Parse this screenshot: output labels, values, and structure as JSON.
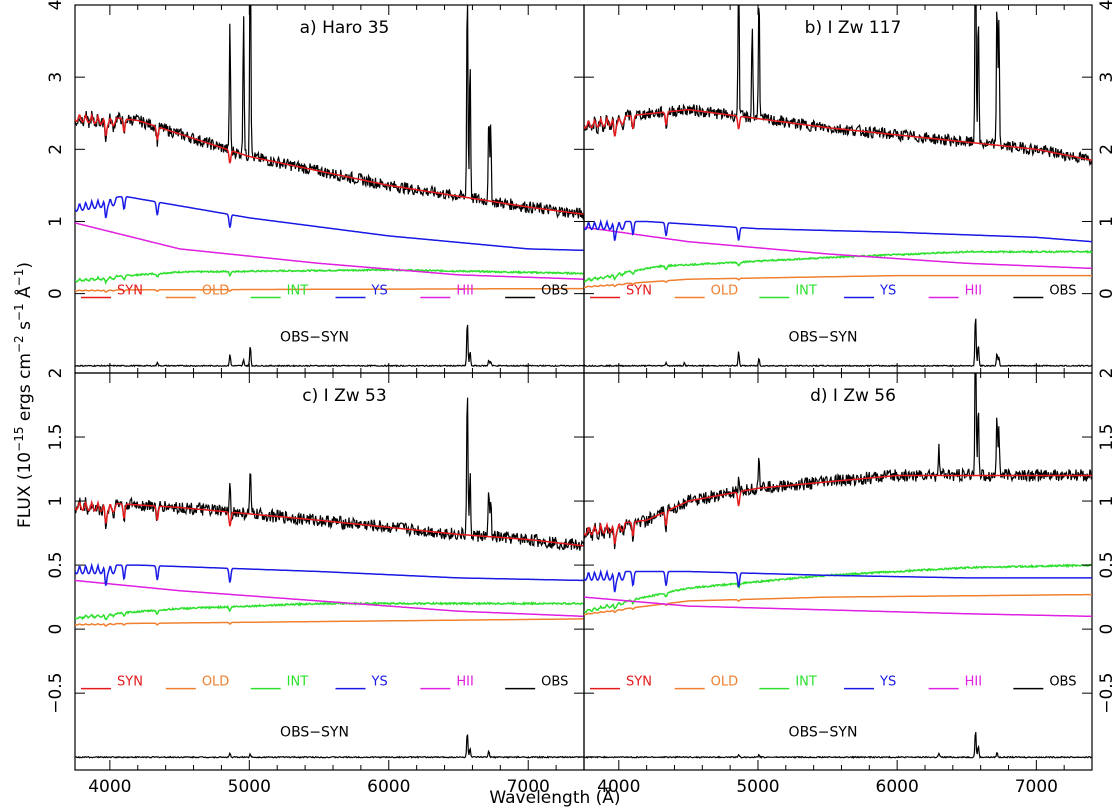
{
  "figure": {
    "ylabel": "FLUX (10^-15 ergs cm^-2 s^-1 Å^-1)",
    "ylabel_parts": [
      "FLUX (10",
      "−15",
      " ergs cm",
      "−2",
      " s",
      "−1",
      " Å",
      "−1",
      ")"
    ],
    "xlabel": "Wavelength (Å)",
    "legend": [
      {
        "label": "SYN",
        "color": "#e41a1c"
      },
      {
        "label": "OLD",
        "color": "#f08030"
      },
      {
        "label": "INT",
        "color": "#2ee02e"
      },
      {
        "label": "YS",
        "color": "#1a1ae6"
      },
      {
        "label": "HII",
        "color": "#e020e0"
      },
      {
        "label": "OBS",
        "color": "#000000"
      }
    ],
    "residual_label": "OBS−SYN"
  },
  "chart_data": [
    {
      "type": "line",
      "panel": "a",
      "title": "a) Haro 35",
      "xlim": [
        3750,
        7400
      ],
      "ylim": [
        -1.1,
        4
      ],
      "yticks": [
        0,
        1,
        2,
        3,
        4
      ],
      "ytick_labels": [
        "0",
        "1",
        "2",
        "3",
        "4"
      ],
      "ytick_side": "left",
      "xticks": [
        4000,
        5000,
        6000,
        7000
      ],
      "xtick_labels": [],
      "continuum": {
        "SYN": [
          [
            3750,
            2.5
          ],
          [
            4200,
            2.4
          ],
          [
            5000,
            1.9
          ],
          [
            6000,
            1.5
          ],
          [
            7000,
            1.2
          ],
          [
            7400,
            1.1
          ]
        ],
        "YS": [
          [
            3750,
            1.25
          ],
          [
            4100,
            1.35
          ],
          [
            5000,
            1.05
          ],
          [
            6000,
            0.8
          ],
          [
            7000,
            0.62
          ],
          [
            7400,
            0.6
          ]
        ],
        "INT": [
          [
            3750,
            0.2
          ],
          [
            4500,
            0.3
          ],
          [
            6000,
            0.33
          ],
          [
            7400,
            0.28
          ]
        ],
        "OLD": [
          [
            3750,
            0.05
          ],
          [
            7400,
            0.07
          ]
        ],
        "HII": [
          [
            3750,
            0.98
          ],
          [
            4500,
            0.62
          ],
          [
            5500,
            0.42
          ],
          [
            6500,
            0.26
          ],
          [
            7400,
            0.2
          ]
        ]
      },
      "emission_lines": [
        [
          4861,
          2.0
        ],
        [
          4959,
          2.0
        ],
        [
          5007,
          3.2
        ],
        [
          6563,
          3.0
        ],
        [
          6583,
          2.0
        ],
        [
          6717,
          1.2
        ],
        [
          6731,
          1.0
        ]
      ],
      "residual": {
        "baseline": -1.0,
        "peaks": [
          [
            4340,
            0.05
          ],
          [
            4861,
            0.16
          ],
          [
            4959,
            0.08
          ],
          [
            5007,
            0.28
          ],
          [
            6563,
            0.62
          ],
          [
            6583,
            0.2
          ],
          [
            6717,
            0.08
          ],
          [
            6731,
            0.06
          ]
        ]
      }
    },
    {
      "type": "line",
      "panel": "b",
      "title": "b) I Zw 117",
      "xlim": [
        3750,
        7400
      ],
      "ylim": [
        -1.1,
        4
      ],
      "yticks": [
        0,
        1,
        2,
        3,
        4
      ],
      "ytick_labels": [
        "0",
        "1",
        "2",
        "3",
        "4"
      ],
      "ytick_side": "right",
      "xticks": [
        4000,
        5000,
        6000,
        7000
      ],
      "xtick_labels": [],
      "continuum": {
        "SYN": [
          [
            3750,
            2.4
          ],
          [
            4500,
            2.55
          ],
          [
            5500,
            2.3
          ],
          [
            6000,
            2.2
          ],
          [
            7000,
            2.0
          ],
          [
            7400,
            1.85
          ]
        ],
        "YS": [
          [
            3750,
            1.0
          ],
          [
            4200,
            1.0
          ],
          [
            5000,
            0.9
          ],
          [
            6000,
            0.85
          ],
          [
            7000,
            0.78
          ],
          [
            7400,
            0.72
          ]
        ],
        "INT": [
          [
            3750,
            0.2
          ],
          [
            4300,
            0.38
          ],
          [
            5500,
            0.5
          ],
          [
            6500,
            0.58
          ],
          [
            7400,
            0.58
          ]
        ],
        "OLD": [
          [
            3750,
            0.1
          ],
          [
            4500,
            0.2
          ],
          [
            6000,
            0.25
          ],
          [
            7400,
            0.25
          ]
        ],
        "HII": [
          [
            3750,
            0.92
          ],
          [
            4500,
            0.72
          ],
          [
            5500,
            0.55
          ],
          [
            6500,
            0.42
          ],
          [
            7400,
            0.35
          ]
        ]
      },
      "emission_lines": [
        [
          4861,
          2.4
        ],
        [
          4959,
          1.3
        ],
        [
          5007,
          1.8
        ],
        [
          6563,
          3.2
        ],
        [
          6583,
          1.8
        ],
        [
          6717,
          2.0
        ],
        [
          6731,
          1.8
        ]
      ],
      "residual": {
        "baseline": -1.0,
        "peaks": [
          [
            4340,
            0.05
          ],
          [
            4471,
            0.04
          ],
          [
            4861,
            0.2
          ],
          [
            5007,
            0.1
          ],
          [
            6563,
            0.72
          ],
          [
            6583,
            0.3
          ],
          [
            6717,
            0.18
          ],
          [
            6731,
            0.12
          ]
        ]
      }
    },
    {
      "type": "line",
      "panel": "c",
      "title": "c) I Zw 53",
      "xlim": [
        3750,
        7400
      ],
      "ylim": [
        -1.1,
        2
      ],
      "yticks": [
        -0.5,
        0,
        0.5,
        1,
        1.5,
        2
      ],
      "ytick_labels": [
        "−0.5",
        "0",
        "0.5",
        "1",
        "1.5",
        "2"
      ],
      "ytick_side": "left",
      "xticks": [
        4000,
        5000,
        6000,
        7000
      ],
      "xtick_labels": [
        "4000",
        "5000",
        "6000",
        "7000"
      ],
      "continuum": {
        "SYN": [
          [
            3750,
            1.0
          ],
          [
            4500,
            0.95
          ],
          [
            5500,
            0.85
          ],
          [
            6500,
            0.74
          ],
          [
            7000,
            0.7
          ],
          [
            7400,
            0.65
          ]
        ],
        "YS": [
          [
            3750,
            0.5
          ],
          [
            4200,
            0.5
          ],
          [
            5500,
            0.45
          ],
          [
            6500,
            0.4
          ],
          [
            7400,
            0.38
          ]
        ],
        "INT": [
          [
            3750,
            0.1
          ],
          [
            4500,
            0.16
          ],
          [
            5500,
            0.2
          ],
          [
            7400,
            0.2
          ]
        ],
        "OLD": [
          [
            3750,
            0.04
          ],
          [
            7400,
            0.08
          ]
        ],
        "HII": [
          [
            3750,
            0.38
          ],
          [
            4500,
            0.3
          ],
          [
            5500,
            0.22
          ],
          [
            6500,
            0.14
          ],
          [
            7400,
            0.1
          ]
        ]
      },
      "emission_lines": [
        [
          4861,
          0.4
        ],
        [
          5007,
          0.35
        ],
        [
          6563,
          1.2
        ],
        [
          6583,
          0.5
        ],
        [
          6717,
          0.35
        ],
        [
          6731,
          0.3
        ]
      ],
      "residual": {
        "baseline": -1.0,
        "peaks": [
          [
            4861,
            0.05
          ],
          [
            5007,
            0.04
          ],
          [
            6563,
            0.32
          ],
          [
            6583,
            0.12
          ],
          [
            6717,
            0.08
          ]
        ]
      }
    },
    {
      "type": "line",
      "panel": "d",
      "title": "d) I Zw 56",
      "xlim": [
        3750,
        7400
      ],
      "ylim": [
        -1.1,
        2
      ],
      "yticks": [
        -0.5,
        0,
        0.5,
        1,
        1.5,
        2
      ],
      "ytick_labels": [
        "−0.5",
        "0",
        "0.5",
        "1",
        "1.5",
        "2"
      ],
      "ytick_side": "right",
      "xticks": [
        4000,
        5000,
        6000,
        7000
      ],
      "xtick_labels": [
        "4000",
        "5000",
        "6000",
        "7000"
      ],
      "continuum": {
        "SYN": [
          [
            3750,
            0.8
          ],
          [
            4200,
            0.85
          ],
          [
            4500,
            1.0
          ],
          [
            5000,
            1.1
          ],
          [
            6000,
            1.2
          ],
          [
            7000,
            1.2
          ],
          [
            7400,
            1.2
          ]
        ],
        "YS": [
          [
            3750,
            0.45
          ],
          [
            4500,
            0.45
          ],
          [
            5500,
            0.42
          ],
          [
            6500,
            0.4
          ],
          [
            7400,
            0.4
          ]
        ],
        "INT": [
          [
            3750,
            0.15
          ],
          [
            4500,
            0.32
          ],
          [
            5500,
            0.42
          ],
          [
            6500,
            0.48
          ],
          [
            7400,
            0.5
          ]
        ],
        "OLD": [
          [
            3750,
            0.12
          ],
          [
            4500,
            0.22
          ],
          [
            5500,
            0.25
          ],
          [
            7400,
            0.27
          ]
        ],
        "HII": [
          [
            3750,
            0.25
          ],
          [
            4500,
            0.18
          ],
          [
            5500,
            0.15
          ],
          [
            6500,
            0.12
          ],
          [
            7400,
            0.1
          ]
        ]
      },
      "emission_lines": [
        [
          4861,
          0.2
        ],
        [
          5007,
          0.3
        ],
        [
          6300,
          0.25
        ],
        [
          6563,
          1.2
        ],
        [
          6583,
          0.6
        ],
        [
          6717,
          0.5
        ],
        [
          6731,
          0.4
        ]
      ],
      "residual": {
        "baseline": -1.0,
        "peaks": [
          [
            4861,
            0.03
          ],
          [
            5007,
            0.03
          ],
          [
            6300,
            0.05
          ],
          [
            6563,
            0.35
          ],
          [
            6583,
            0.15
          ],
          [
            6717,
            0.06
          ]
        ]
      }
    }
  ]
}
